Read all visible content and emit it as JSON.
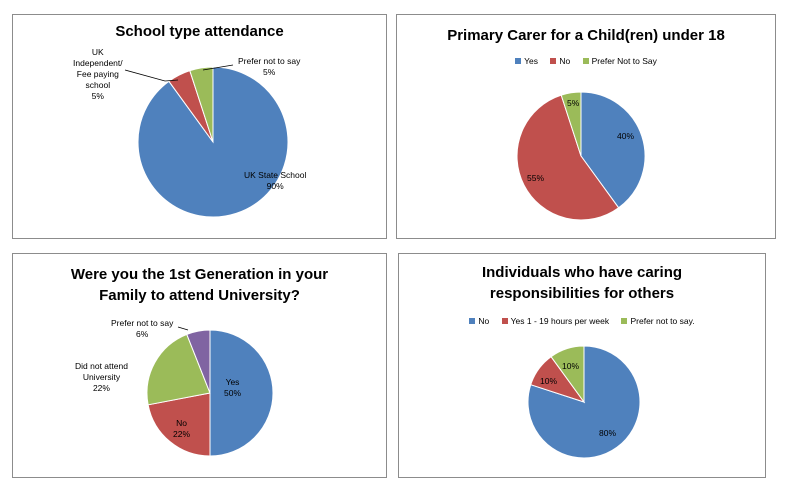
{
  "colors": {
    "blue": "#4f81bd",
    "red": "#c0504d",
    "green": "#9bbb59",
    "purple": "#8064a2"
  },
  "chart_data": [
    {
      "type": "pie",
      "title": "School type attendance",
      "categories": [
        "UK State School",
        "UK Independent/ Fee paying school",
        "Prefer not to say"
      ],
      "values": [
        90,
        5,
        5
      ],
      "data_labels": [
        [
          "UK State School",
          "90%"
        ],
        [
          "UK",
          "Independent/",
          "Fee paying",
          "school",
          "5%"
        ],
        [
          "Prefer not to say",
          "5%"
        ]
      ],
      "slice_colors": [
        "#4f81bd",
        "#c0504d",
        "#9bbb59"
      ],
      "legend": "none"
    },
    {
      "type": "pie",
      "title": "Primary Carer for a Child(ren) under 18",
      "categories": [
        "Yes",
        "No",
        "Prefer Not to Say"
      ],
      "values": [
        40,
        55,
        5
      ],
      "data_labels": [
        [
          "40%"
        ],
        [
          "55%"
        ],
        [
          "5%"
        ]
      ],
      "slice_colors": [
        "#4f81bd",
        "#c0504d",
        "#9bbb59"
      ],
      "legend": "top"
    },
    {
      "type": "pie",
      "title": [
        "Were you the 1st Generation in your",
        "Family to attend University?"
      ],
      "categories": [
        "Yes",
        "No",
        "Did not attend University",
        "Prefer not to say"
      ],
      "values": [
        50,
        22,
        22,
        6
      ],
      "data_labels": [
        [
          "Yes",
          "50%"
        ],
        [
          "No",
          "22%"
        ],
        [
          "Did not attend",
          "University",
          "22%"
        ],
        [
          "Prefer not to say",
          "6%"
        ]
      ],
      "slice_colors": [
        "#4f81bd",
        "#c0504d",
        "#9bbb59",
        "#8064a2"
      ],
      "legend": "none"
    },
    {
      "type": "pie",
      "title": [
        "Individuals who have caring",
        "responsibilities for others"
      ],
      "categories": [
        "No",
        "Yes 1 - 19 hours per week",
        "Prefer not to say."
      ],
      "values": [
        80,
        10,
        10
      ],
      "data_labels": [
        [
          "80%"
        ],
        [
          "10%"
        ],
        [
          "10%"
        ]
      ],
      "slice_colors": [
        "#4f81bd",
        "#c0504d",
        "#9bbb59"
      ],
      "legend": "top"
    }
  ]
}
